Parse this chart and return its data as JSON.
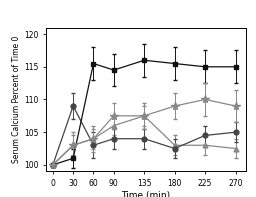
{
  "time": [
    0,
    30,
    60,
    90,
    135,
    180,
    225,
    270
  ],
  "placebo": [
    100,
    103,
    104,
    106,
    107.5,
    103,
    103,
    102.5
  ],
  "placebo_err": [
    0,
    1.5,
    1.5,
    1.5,
    1.5,
    1.5,
    1.5,
    1.5
  ],
  "ca_formate": [
    100,
    109,
    103,
    104,
    104,
    102.5,
    104.5,
    105
  ],
  "ca_formate_err": [
    0,
    2,
    2,
    1.5,
    1.5,
    1.5,
    1.5,
    1.5
  ],
  "ca_carbonate": [
    100,
    101,
    115.5,
    114.5,
    116,
    115.5,
    115,
    115
  ],
  "ca_carbonate_err": [
    0,
    1.5,
    2.5,
    2.5,
    2.5,
    2.5,
    2.5,
    2.5
  ],
  "ca_citrate": [
    100,
    103,
    104,
    107.5,
    107.5,
    109,
    110,
    109
  ],
  "ca_citrate_err": [
    0,
    2,
    2,
    2,
    2,
    2,
    2.5,
    2.5
  ],
  "ylim": [
    99,
    121
  ],
  "yticks": [
    100,
    105,
    110,
    115,
    120
  ],
  "xticks": [
    0,
    30,
    60,
    90,
    135,
    180,
    225,
    270
  ],
  "xlabel": "Time (min)",
  "ylabel": "Serum Calcium Percent of Time 0",
  "color_placebo": "#888888",
  "color_formate": "#444444",
  "color_carbonate": "#111111",
  "color_citrate": "#888888",
  "bg_color": "#ffffff"
}
